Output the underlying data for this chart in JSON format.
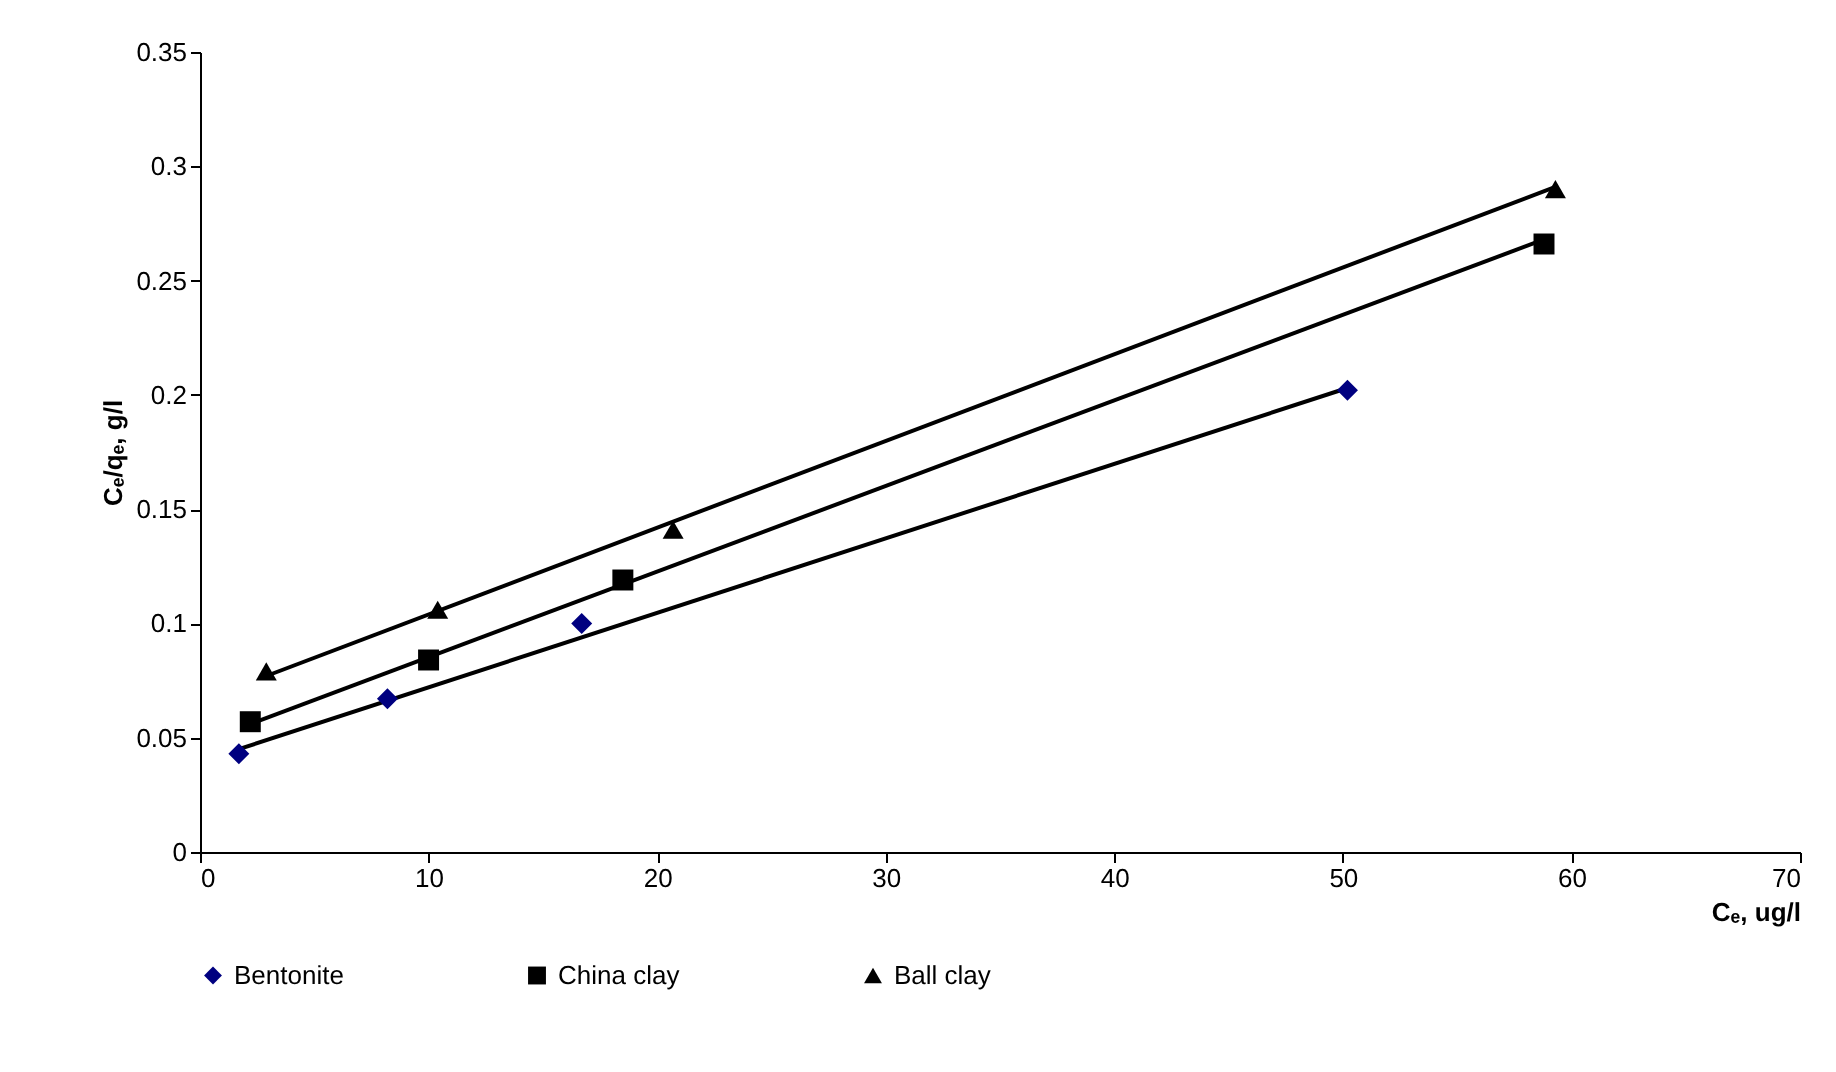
{
  "chart_data": {
    "type": "scatter",
    "xlabel": "Cₑ, ug/l",
    "ylabel": "Cₑ/qₑ, g/l",
    "xlim": [
      0,
      70
    ],
    "xticks": [
      0,
      10,
      20,
      30,
      40,
      50,
      60,
      70
    ],
    "ylim": [
      0,
      0.35
    ],
    "yticks": [
      0,
      0.05,
      0.1,
      0.15,
      0.2,
      0.25,
      0.3,
      0.35
    ],
    "grid": false,
    "legend": "bottom",
    "series": [
      {
        "name": "Bentonite",
        "marker": "diamond",
        "color": "#000080",
        "x": [
          1.7,
          8.2,
          16.7,
          50.2
        ],
        "values": [
          0.043,
          0.067,
          0.1,
          0.202
        ]
      },
      {
        "name": "China clay",
        "marker": "square",
        "color": "#000000",
        "x": [
          2.2,
          10,
          18.5,
          58.8
        ],
        "values": [
          0.057,
          0.084,
          0.119,
          0.266
        ]
      },
      {
        "name": "Ball clay",
        "marker": "triangle",
        "color": "#000000",
        "x": [
          2.9,
          10.4,
          20.7,
          59.3
        ],
        "values": [
          0.079,
          0.106,
          0.141,
          0.29
        ]
      },
      {
        "type": "line",
        "color": "#000000",
        "x": [
          1.7,
          50.2
        ],
        "values": [
          0.045,
          0.203
        ]
      },
      {
        "type": "line",
        "color": "#000000",
        "x": [
          2.2,
          58.8
        ],
        "values": [
          0.056,
          0.268
        ]
      },
      {
        "type": "line",
        "color": "#000000",
        "x": [
          2.9,
          59.3
        ],
        "values": [
          0.077,
          0.291
        ]
      }
    ]
  }
}
